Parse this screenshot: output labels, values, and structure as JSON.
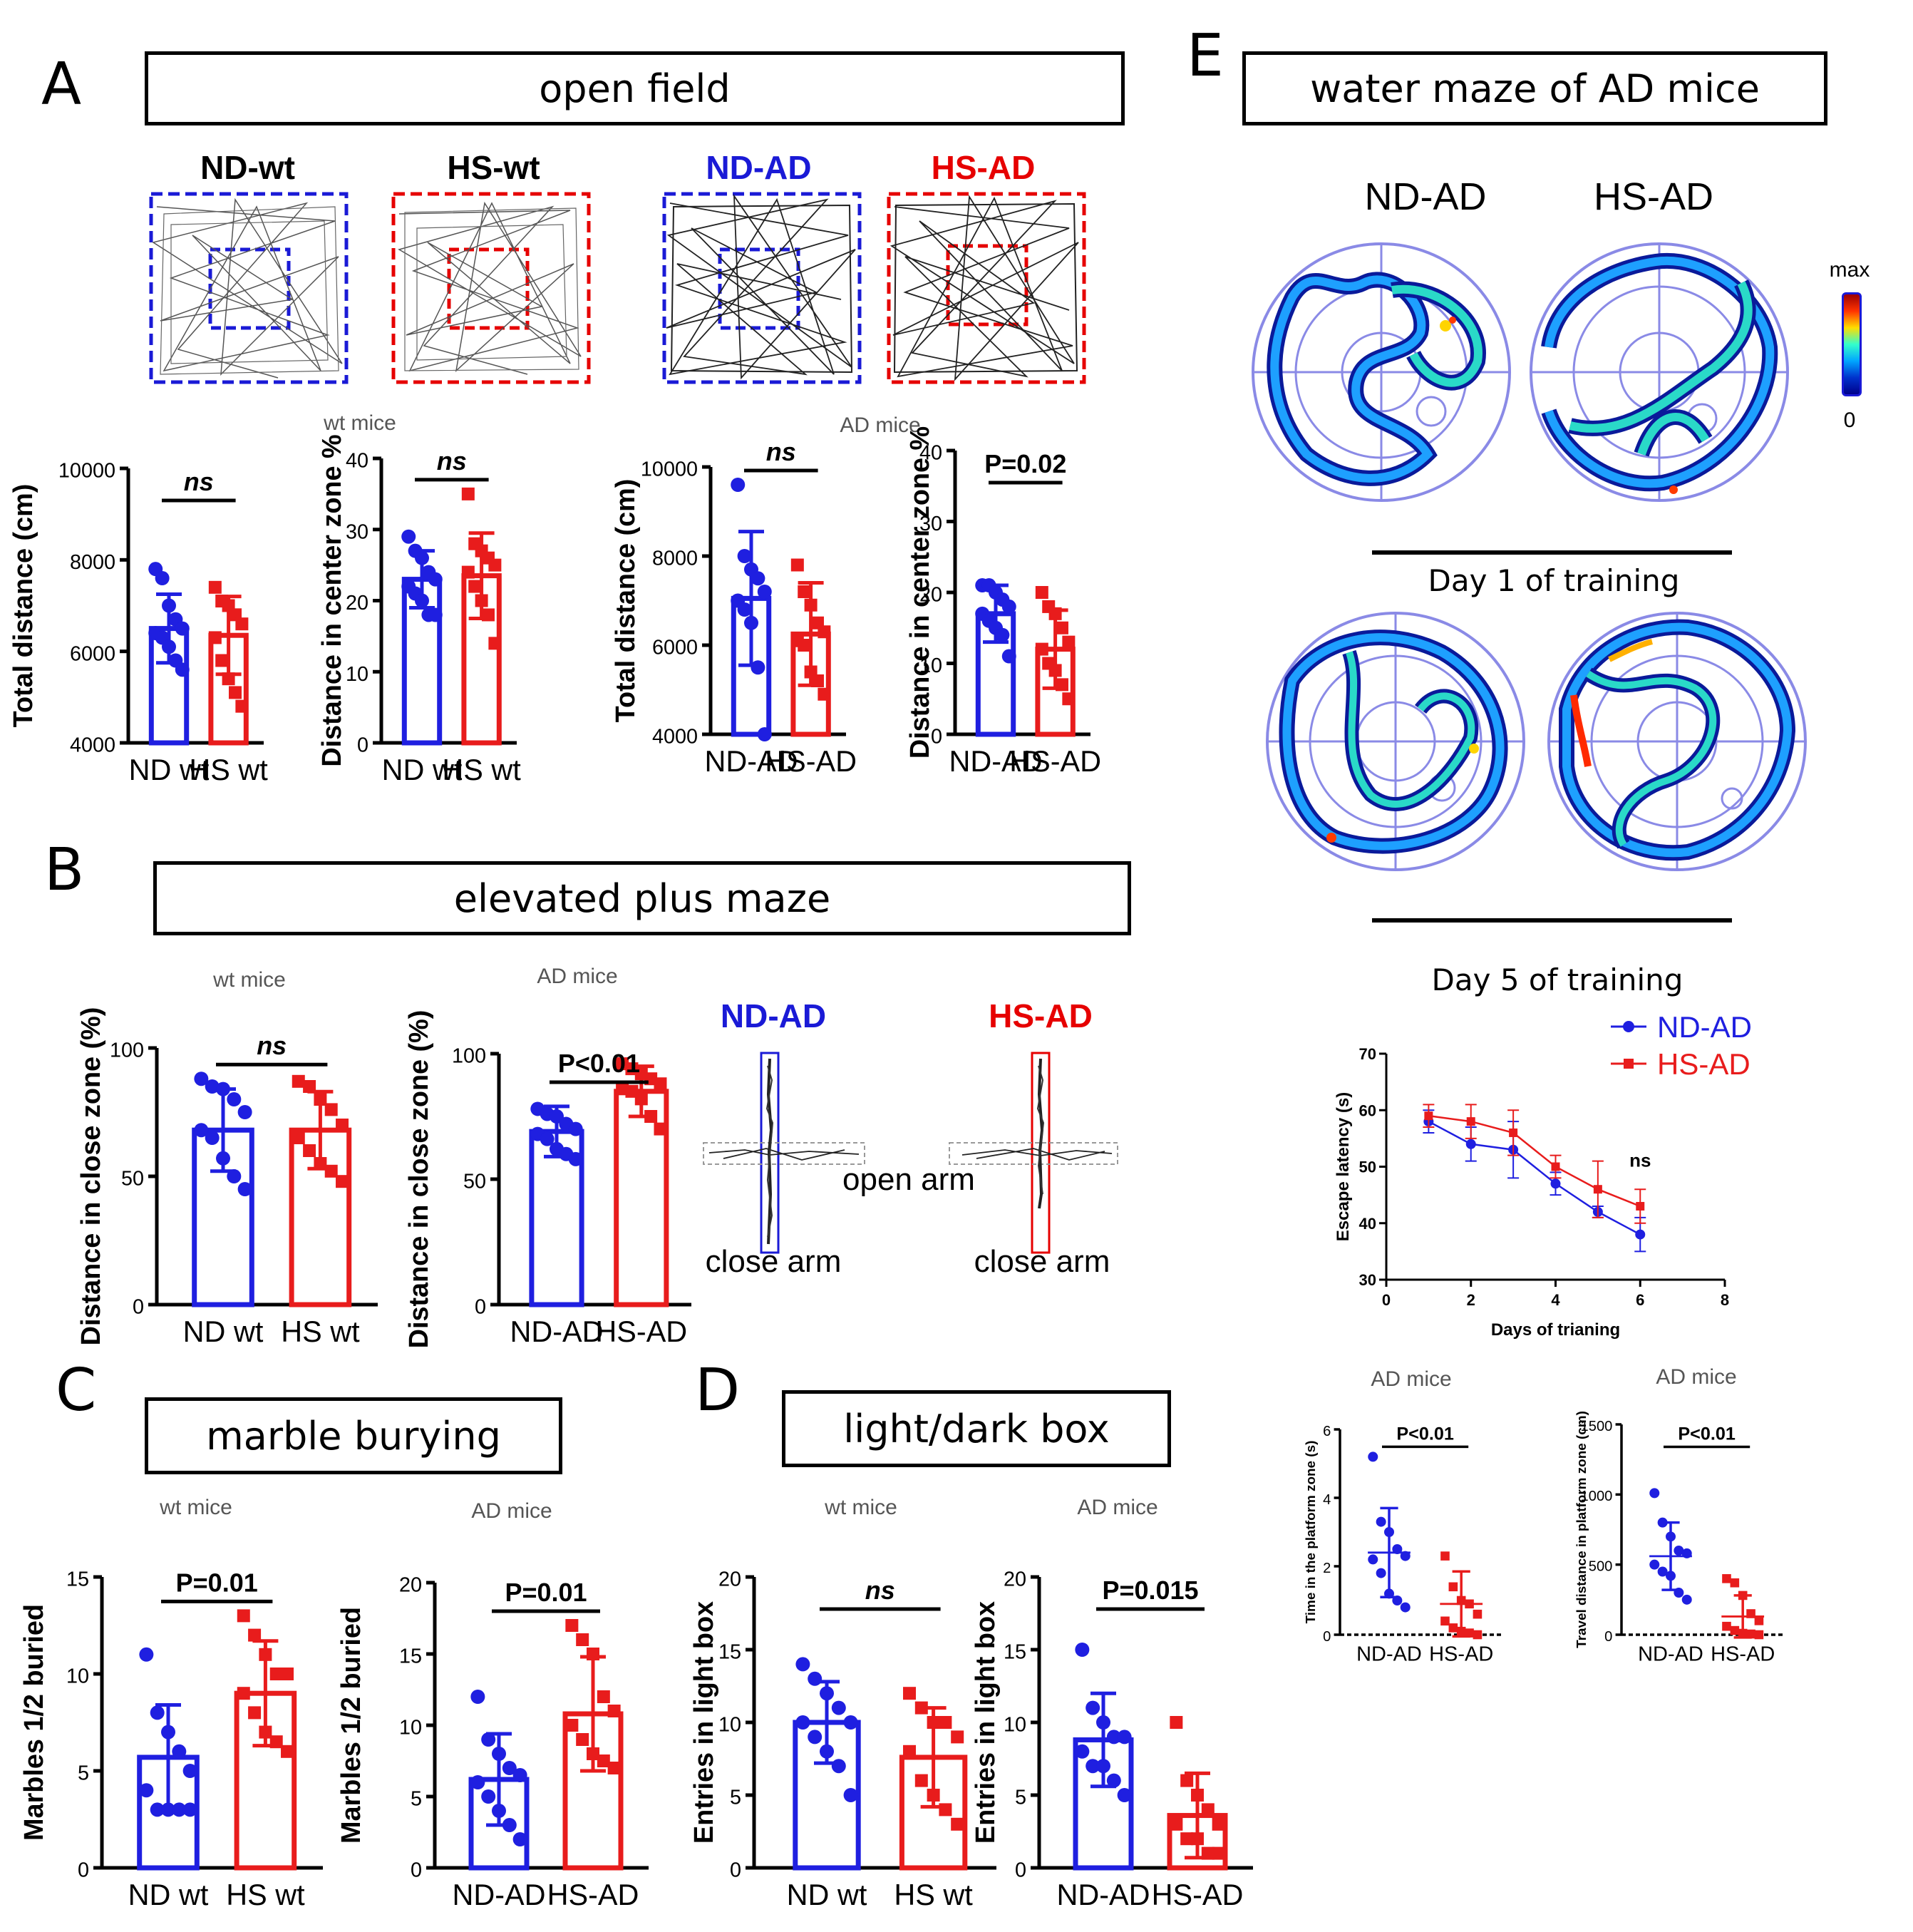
{
  "panels": {
    "A": {
      "letter": "A",
      "title": "open field",
      "groups": [
        "ND-wt",
        "HS-wt",
        "ND-AD",
        "HS-AD"
      ],
      "wt_label": "wt mice",
      "ad_label": "AD mice"
    },
    "B": {
      "letter": "B",
      "title": "elevated plus maze",
      "wt_label": "wt mice",
      "ad_label": "AD mice",
      "groups": [
        "ND-AD",
        "HS-AD"
      ],
      "open_arm": "open arm",
      "close_arm": "close arm"
    },
    "C": {
      "letter": "C",
      "title": "marble burying",
      "wt_label": "wt mice",
      "ad_label": "AD mice"
    },
    "D": {
      "letter": "D",
      "title": "light/dark box",
      "wt_label": "wt mice",
      "ad_label": "AD mice"
    },
    "E": {
      "letter": "E",
      "title": "water maze of AD mice",
      "groups": [
        "ND-AD",
        "HS-AD"
      ],
      "colorbar_max": "max",
      "colorbar_min": "0",
      "day1": "Day 1 of training",
      "day5": "Day 5 of training",
      "ad_label": "AD mice"
    }
  },
  "colors": {
    "nd": "#1f1fe0",
    "hs": "#e81c1c",
    "blue_group_label": "#1a1ad6",
    "red_group_label": "#e60000"
  },
  "chart_data": [
    {
      "id": "a1",
      "type": "bar",
      "categories": [
        "ND wt",
        "HS wt"
      ],
      "ylabel": "Total distance (cm)",
      "ylim": [
        4000,
        10000
      ],
      "ticks": [
        4000,
        6000,
        8000,
        10000
      ],
      "series": [
        {
          "values": [
            6500,
            6350
          ],
          "sd": [
            750,
            850
          ]
        }
      ],
      "sig": "ns",
      "sig_italic": true,
      "points": [
        [
          7800,
          7600,
          7000,
          6700,
          6500,
          6400,
          6300,
          6100,
          5800,
          5600
        ],
        [
          7400,
          7100,
          7000,
          6800,
          6600,
          6300,
          5800,
          5400,
          5100,
          4800
        ]
      ]
    },
    {
      "id": "a2",
      "type": "bar",
      "categories": [
        "ND wt",
        "HS wt"
      ],
      "ylabel": "Distance in center zone %",
      "ylim": [
        0,
        40
      ],
      "ticks": [
        0,
        10,
        20,
        30,
        40
      ],
      "series": [
        {
          "values": [
            23,
            23.5
          ],
          "sd": [
            4,
            6
          ]
        }
      ],
      "sig": "ns",
      "sig_italic": true,
      "points": [
        [
          29,
          27,
          26,
          24,
          23,
          22,
          21,
          20,
          18,
          18
        ],
        [
          35,
          28,
          27,
          26,
          25,
          24,
          22,
          20,
          18,
          14
        ]
      ]
    },
    {
      "id": "a3",
      "type": "bar",
      "categories": [
        "ND-AD",
        "HS-AD"
      ],
      "ylabel": "Total distance (cm)",
      "ylim": [
        4000,
        10000
      ],
      "ticks": [
        4000,
        6000,
        8000,
        10000
      ],
      "series": [
        {
          "values": [
            7050,
            6250
          ],
          "sd": [
            1500,
            1150
          ]
        }
      ],
      "sig": "ns",
      "sig_italic": true,
      "points": [
        [
          9600,
          8000,
          7700,
          7500,
          7200,
          7000,
          6800,
          6500,
          5500,
          4000
        ],
        [
          7800,
          7200,
          6900,
          6500,
          6300,
          6100,
          6000,
          5400,
          5200,
          4900
        ]
      ]
    },
    {
      "id": "a4",
      "type": "bar",
      "categories": [
        "ND-AD",
        "HS-AD"
      ],
      "ylabel": "Distance in center zone %",
      "ylim": [
        0,
        40
      ],
      "ticks": [
        0,
        10,
        20,
        30,
        40
      ],
      "series": [
        {
          "values": [
            17,
            12
          ],
          "sd": [
            4,
            5.5
          ]
        }
      ],
      "sig": "P=0.02",
      "sig_italic": false,
      "points": [
        [
          21,
          21,
          20,
          19,
          18,
          17,
          16,
          15,
          14,
          11
        ],
        [
          20,
          18,
          17,
          15,
          13,
          12,
          10,
          9,
          7,
          5
        ]
      ]
    },
    {
      "id": "b1",
      "type": "bar",
      "categories": [
        "ND wt",
        "HS wt"
      ],
      "ylabel": "Distance in close zone (%)",
      "ylim": [
        0,
        100
      ],
      "ticks": [
        0,
        50,
        100
      ],
      "series": [
        {
          "values": [
            68,
            68
          ],
          "sd": [
            16,
            15
          ]
        }
      ],
      "sig": "ns",
      "sig_italic": true,
      "points": [
        [
          88,
          85,
          84,
          80,
          75,
          68,
          65,
          57,
          50,
          45
        ],
        [
          87,
          85,
          80,
          76,
          70,
          65,
          60,
          55,
          52,
          48
        ]
      ]
    },
    {
      "id": "b2",
      "type": "bar",
      "categories": [
        "ND-AD",
        "HS-AD"
      ],
      "ylabel": "Distance in close zone (%)",
      "ylim": [
        0,
        100
      ],
      "ticks": [
        0,
        50,
        100
      ],
      "series": [
        {
          "values": [
            69,
            85
          ],
          "sd": [
            10,
            10
          ]
        }
      ],
      "sig": "P<0.01",
      "sig_italic": false,
      "points": [
        [
          78,
          76,
          75,
          72,
          70,
          68,
          66,
          62,
          60,
          58
        ],
        [
          96,
          94,
          92,
          90,
          88,
          86,
          85,
          82,
          75,
          70
        ]
      ]
    },
    {
      "id": "c1",
      "type": "bar",
      "categories": [
        "ND wt",
        "HS wt"
      ],
      "ylabel": "Marbles 1/2 buried",
      "ylim": [
        0,
        15
      ],
      "ticks": [
        0,
        5,
        10,
        15
      ],
      "series": [
        {
          "values": [
            5.7,
            9
          ],
          "sd": [
            2.7,
            2.7
          ]
        }
      ],
      "sig": "P=0.01",
      "sig_italic": false,
      "points": [
        [
          11,
          8,
          7,
          6,
          5,
          4,
          3,
          3,
          3,
          3
        ],
        [
          13,
          12,
          11,
          10,
          10,
          9,
          8,
          7,
          6.5,
          6
        ]
      ]
    },
    {
      "id": "c2",
      "type": "bar",
      "categories": [
        "ND-AD",
        "HS-AD"
      ],
      "ylabel": "Marbles 1/2 buried",
      "ylim": [
        0,
        20
      ],
      "ticks": [
        0,
        5,
        10,
        15,
        20
      ],
      "series": [
        {
          "values": [
            6.2,
            10.8
          ],
          "sd": [
            3.2,
            4
          ]
        }
      ],
      "sig": "P=0.01",
      "sig_italic": false,
      "points": [
        [
          12,
          9,
          8,
          7,
          6.5,
          6,
          5,
          4,
          3,
          2
        ],
        [
          17,
          16,
          15,
          12,
          11,
          10,
          9,
          8,
          7.5,
          7
        ]
      ]
    },
    {
      "id": "d1",
      "type": "bar",
      "categories": [
        "ND wt",
        "HS wt"
      ],
      "ylabel": "Entries in light box",
      "ylim": [
        0,
        20
      ],
      "ticks": [
        0,
        5,
        10,
        15,
        20
      ],
      "series": [
        {
          "values": [
            10,
            7.6
          ],
          "sd": [
            2.8,
            3.4
          ]
        }
      ],
      "sig": "ns",
      "sig_italic": true,
      "points": [
        [
          14,
          13,
          12,
          11,
          10,
          10,
          9,
          8,
          7,
          5
        ],
        [
          12,
          11,
          10,
          10,
          9,
          8,
          6,
          5,
          4,
          3
        ]
      ]
    },
    {
      "id": "d2",
      "type": "bar",
      "categories": [
        "ND-AD",
        "HS-AD"
      ],
      "ylabel": "Entries in light box",
      "ylim": [
        0,
        20
      ],
      "ticks": [
        0,
        5,
        10,
        15,
        20
      ],
      "series": [
        {
          "values": [
            8.8,
            3.6
          ],
          "sd": [
            3.2,
            2.9
          ]
        }
      ],
      "sig": "P=0.015",
      "sig_italic": false,
      "points": [
        [
          15,
          11,
          10,
          9,
          9,
          8,
          7,
          7,
          6,
          5
        ],
        [
          10,
          6,
          5,
          4,
          3,
          3,
          2,
          2,
          1,
          1
        ]
      ]
    },
    {
      "id": "e1",
      "type": "line",
      "xlabel": "Days of trianing",
      "ylabel": "Escape latency (s)",
      "xlim": [
        0,
        8
      ],
      "ylim": [
        30,
        70
      ],
      "xticks": [
        0,
        2,
        4,
        6,
        8
      ],
      "yticks": [
        30,
        40,
        50,
        60,
        70
      ],
      "annotation": "ns",
      "series": [
        {
          "name": "ND-AD",
          "x": [
            1,
            2,
            3,
            4,
            5,
            6
          ],
          "y": [
            58,
            54,
            53,
            47,
            42,
            38
          ],
          "sd": [
            2,
            3,
            5,
            2,
            1,
            3
          ]
        },
        {
          "name": "HS-AD",
          "x": [
            1,
            2,
            3,
            4,
            5,
            6
          ],
          "y": [
            59,
            58,
            56,
            50,
            46,
            43
          ],
          "sd": [
            2,
            3,
            4,
            2,
            5,
            3
          ]
        }
      ]
    },
    {
      "id": "e2",
      "type": "scatter",
      "categories": [
        "ND-AD",
        "HS-AD"
      ],
      "ylabel": "Time in the platform zone (s)",
      "ylim": [
        0,
        6
      ],
      "ticks": [
        0,
        2,
        4,
        6
      ],
      "series": [
        {
          "values": [
            2.4,
            0.9
          ],
          "sd": [
            1.3,
            0.95
          ]
        }
      ],
      "sig": "P<0.01",
      "sig_italic": false,
      "points": [
        [
          5.2,
          3.3,
          3.0,
          2.5,
          2.3,
          2.2,
          1.8,
          1.2,
          1.0,
          0.8
        ],
        [
          2.3,
          1.4,
          1.0,
          0.9,
          0.6,
          0.4,
          0.2,
          0.1,
          0.05,
          0.0
        ]
      ]
    },
    {
      "id": "e3",
      "type": "scatter",
      "categories": [
        "ND-AD",
        "HS-AD"
      ],
      "ylabel": "Travel distance in platform zone (cm)",
      "ylim": [
        0,
        1500
      ],
      "ticks": [
        0,
        500,
        1000,
        1500
      ],
      "series": [
        {
          "values": [
            560,
            130
          ],
          "sd": [
            240,
            150
          ]
        }
      ],
      "sig": "P<0.01",
      "sig_italic": false,
      "points": [
        [
          1010,
          800,
          700,
          600,
          580,
          500,
          450,
          420,
          300,
          250
        ],
        [
          400,
          370,
          280,
          150,
          100,
          60,
          30,
          10,
          5,
          0
        ]
      ]
    }
  ]
}
